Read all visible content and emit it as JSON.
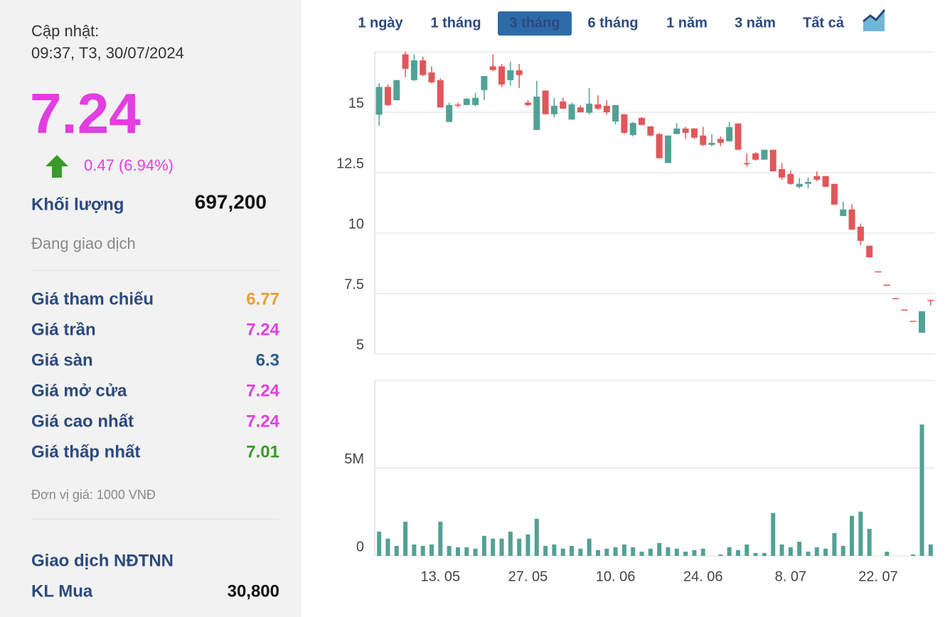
{
  "sidebar": {
    "update_label": "Cập nhật:",
    "update_time": "09:37, T3, 30/07/2024",
    "price": "7.24",
    "change": "0.47 (6.94%)",
    "volume_label": "Khối lượng",
    "volume": "697,200",
    "status": "Đang giao dịch",
    "rows": [
      {
        "label": "Giá tham chiếu",
        "value": "6.77",
        "color": "#e8a033"
      },
      {
        "label": "Giá trần",
        "value": "7.24",
        "color": "#e23ee0"
      },
      {
        "label": "Giá sàn",
        "value": "6.3",
        "color": "#2a5c8a"
      },
      {
        "label": "Giá mở cửa",
        "value": "7.24",
        "color": "#e23ee0"
      },
      {
        "label": "Giá cao nhất",
        "value": "7.24",
        "color": "#e23ee0"
      },
      {
        "label": "Giá thấp nhất",
        "value": "7.01",
        "color": "#3a9a2a"
      }
    ],
    "unit_note": "Đơn vị giá: 1000 VNĐ",
    "foreign_title": "Giao dịch NĐTNN",
    "buy_label": "KL Mua",
    "buy_value": "30,800"
  },
  "tabs": {
    "items": [
      "1 ngày",
      "1 tháng",
      "3 tháng",
      "6 tháng",
      "1 năm",
      "3 năm",
      "Tất cả"
    ],
    "active": 2
  },
  "chart_data": [
    {
      "type": "candlestick",
      "open": [
        14.9,
        16.05,
        15.5,
        17.4,
        16.33,
        17.15,
        16.65,
        16.33,
        14.6,
        15.32,
        15.3,
        15.3,
        15.92,
        16.9,
        16.9,
        16.33,
        16.74,
        15.4,
        14.27,
        15.9,
        14.92,
        15.45,
        14.7,
        15.2,
        14.98,
        15.33,
        15.27,
        14.62,
        14.92,
        14.06,
        14.77,
        14.42,
        14.1,
        12.9,
        14.1,
        14.33,
        14.33,
        14.04,
        13.65,
        13.9,
        13.8,
        14.54,
        12.9,
        13.3,
        13.04,
        13.45,
        12.65,
        12.45,
        11.92,
        12.04,
        12.36,
        12.36,
        12.04,
        10.71,
        10.98,
        10.27,
        9.48,
        8.42,
        7.87,
        7.31,
        6.84,
        6.37,
        5.88,
        7.24
      ],
      "high": [
        16.2,
        16.15,
        16.35,
        17.5,
        17.4,
        17.3,
        16.9,
        16.4,
        15.4,
        15.4,
        15.6,
        15.8,
        16.5,
        17.4,
        17.0,
        17.1,
        17.0,
        15.5,
        16.3,
        15.9,
        15.6,
        15.6,
        15.4,
        15.3,
        16.0,
        15.7,
        15.5,
        15.3,
        14.92,
        14.6,
        14.8,
        14.42,
        14.15,
        14.04,
        14.55,
        14.4,
        14.35,
        14.4,
        14.1,
        14.0,
        14.6,
        14.54,
        13.3,
        13.35,
        13.45,
        13.45,
        12.9,
        12.6,
        12.28,
        12.3,
        12.55,
        12.36,
        12.04,
        11.3,
        11.2,
        10.4,
        9.48,
        8.42,
        7.87,
        7.31,
        6.84,
        6.37,
        6.77,
        7.24
      ],
      "low": [
        14.45,
        15.25,
        15.5,
        16.45,
        16.3,
        16.5,
        16.2,
        15.2,
        14.6,
        15.2,
        15.3,
        15.25,
        15.5,
        16.7,
        16.05,
        16.1,
        16.0,
        15.25,
        14.27,
        14.92,
        14.8,
        15.15,
        14.7,
        15.0,
        14.9,
        15.1,
        14.9,
        14.5,
        14.1,
        14.0,
        14.45,
        14.0,
        13.1,
        12.9,
        14.1,
        13.9,
        13.9,
        13.6,
        13.6,
        13.6,
        13.8,
        13.45,
        12.75,
        13.0,
        13.04,
        12.56,
        12.2,
        12.0,
        11.85,
        11.85,
        12.15,
        11.9,
        11.18,
        10.71,
        10.15,
        9.5,
        9.0,
        8.42,
        7.87,
        7.31,
        6.84,
        6.37,
        5.88,
        7.01
      ],
      "close": [
        16.05,
        15.3,
        16.33,
        16.8,
        17.15,
        16.54,
        16.24,
        15.2,
        15.3,
        15.28,
        15.56,
        15.6,
        16.5,
        16.75,
        16.15,
        16.74,
        16.54,
        15.3,
        15.65,
        14.92,
        15.27,
        15.15,
        15.33,
        15.0,
        15.36,
        15.15,
        15.0,
        15.3,
        14.15,
        14.56,
        14.48,
        14.04,
        13.1,
        14.04,
        14.33,
        14.15,
        13.95,
        13.65,
        13.74,
        13.74,
        14.39,
        13.45,
        12.85,
        13.04,
        13.45,
        12.56,
        12.3,
        12.04,
        12.04,
        12.12,
        12.21,
        11.92,
        11.18,
        10.98,
        10.15,
        9.68,
        9.0,
        8.42,
        7.87,
        7.31,
        6.84,
        6.37,
        6.77,
        7.24
      ],
      "ylim": [
        5,
        17.5
      ],
      "yticks": [
        5,
        7.5,
        10,
        12.5,
        15
      ],
      "grid": true,
      "up_color": "#52a195",
      "down_color": "#e0575a"
    },
    {
      "type": "bar",
      "categories": [
        null,
        null,
        null,
        null,
        null,
        null,
        null,
        "13. 05",
        null,
        null,
        null,
        null,
        null,
        null,
        null,
        null,
        null,
        "27. 05",
        null,
        null,
        null,
        null,
        null,
        null,
        null,
        null,
        null,
        "10. 06",
        null,
        null,
        null,
        null,
        null,
        null,
        null,
        null,
        null,
        "24. 06",
        null,
        null,
        null,
        null,
        null,
        null,
        null,
        null,
        null,
        "8. 07",
        null,
        null,
        null,
        null,
        null,
        null,
        null,
        null,
        null,
        "22. 07",
        null,
        null,
        null,
        null,
        null,
        null
      ],
      "values": [
        1.38,
        0.98,
        0.57,
        1.95,
        0.65,
        0.57,
        0.65,
        1.95,
        0.57,
        0.49,
        0.49,
        0.41,
        1.14,
        0.98,
        0.98,
        1.38,
        0.98,
        1.22,
        2.11,
        0.57,
        0.65,
        0.41,
        0.57,
        0.41,
        0.98,
        0.33,
        0.41,
        0.49,
        0.65,
        0.49,
        0.24,
        0.41,
        0.73,
        0.49,
        0.41,
        0.24,
        0.33,
        0.41,
        0,
        0.08,
        0.49,
        0.33,
        0.65,
        0.16,
        0.16,
        2.44,
        0.65,
        0.49,
        0.81,
        0.24,
        0.49,
        0.41,
        1.3,
        0.57,
        2.28,
        2.52,
        1.54,
        0,
        0.24,
        0,
        0,
        0.08,
        7.48,
        0.65
      ],
      "ylim": [
        0,
        10
      ],
      "yticks": [
        0,
        {
          "value": 5,
          "label": "5M"
        }
      ],
      "grid": true,
      "color": "#52a195"
    }
  ]
}
